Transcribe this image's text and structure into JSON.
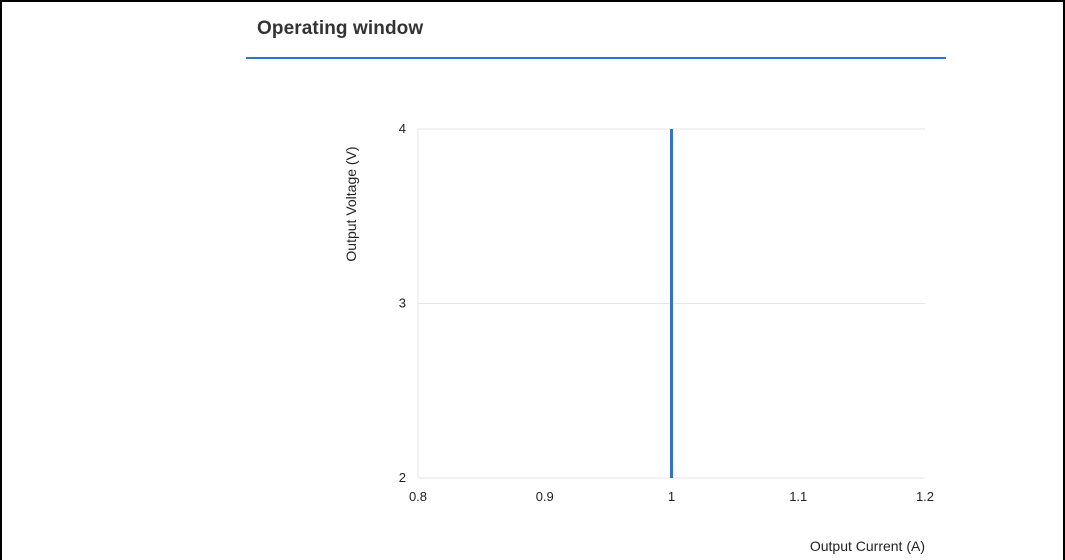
{
  "section": {
    "title": "Operating window"
  },
  "colors": {
    "accent": "#2f74c9",
    "grid": "#e6e6e6",
    "series": "#2f74c9"
  },
  "chart_data": {
    "type": "line",
    "title": "",
    "xlabel": "Output Current (A)",
    "ylabel": "Output Voltage (V)",
    "xlim": [
      0.8,
      1.2
    ],
    "ylim": [
      2,
      4
    ],
    "x_ticks": [
      "0.8",
      "0.9",
      "1",
      "1.1",
      "1.2"
    ],
    "y_ticks": [
      "2",
      "3",
      "4"
    ],
    "grid": true,
    "series": [
      {
        "points": [
          [
            1.0,
            2.0
          ],
          [
            1.0,
            4.0
          ]
        ]
      }
    ]
  }
}
